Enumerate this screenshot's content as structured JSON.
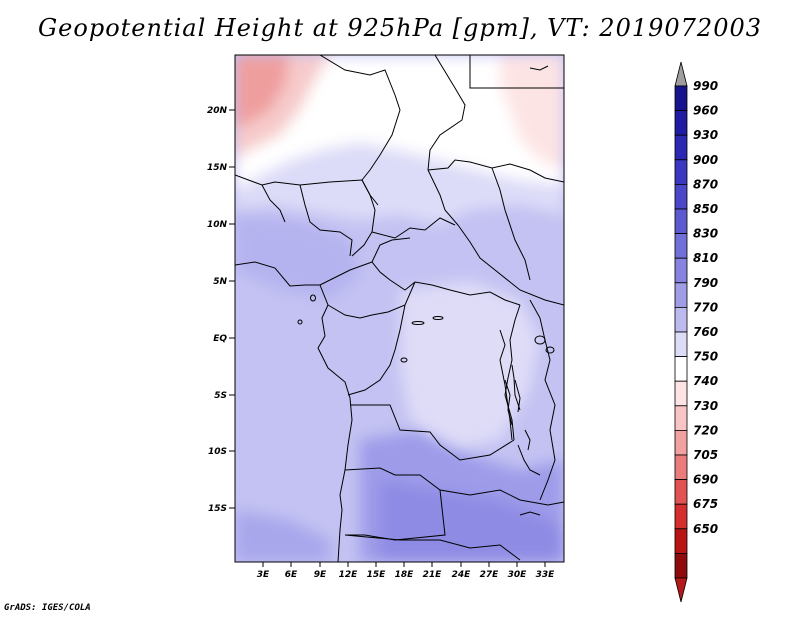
{
  "title": "Geopotential Height at 925hPa [gpm], VT: 2019072003",
  "footer": "GrADS: IGES/COLA",
  "map": {
    "lat_labels": [
      "20N",
      "15N",
      "10N",
      "5N",
      "EQ",
      "5S",
      "10S",
      "15S"
    ],
    "lon_labels": [
      "3E",
      "6E",
      "9E",
      "12E",
      "15E",
      "18E",
      "21E",
      "24E",
      "27E",
      "30E",
      "33E"
    ]
  },
  "colorbar": {
    "levels": [
      "990",
      "960",
      "930",
      "900",
      "870",
      "850",
      "830",
      "810",
      "790",
      "770",
      "760",
      "750",
      "740",
      "730",
      "720",
      "705",
      "690",
      "675",
      "650"
    ],
    "colors": [
      "#16148c",
      "#1f1ca3",
      "#2b29b4",
      "#3a37c0",
      "#4a47c9",
      "#5d5ad1",
      "#716fd8",
      "#8684e0",
      "#9f9de6",
      "#bcbaee",
      "#dcdcf7",
      "#ffffff",
      "#fde4e4",
      "#f9c4c4",
      "#f2a1a1",
      "#ea7c7c",
      "#e15353",
      "#d42e2e",
      "#b81414",
      "#8f0a0a"
    ],
    "top_arrow_color": "#9e9e9e",
    "bottom_arrow_color": "#b51a1a"
  }
}
